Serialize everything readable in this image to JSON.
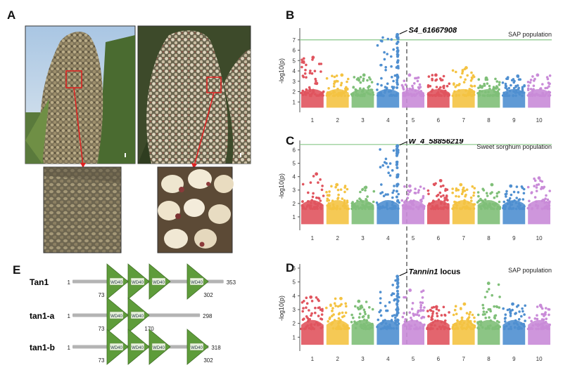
{
  "panels": {
    "A": "A",
    "B": "B",
    "C": "C",
    "D": "D",
    "E": "E"
  },
  "manhattan": [
    {
      "id": "B",
      "annotation": "S4_61667908",
      "population": "SAP population",
      "ylabel": "-log10(p)",
      "ylim": [
        0,
        8
      ],
      "yticks": [
        "1",
        "2",
        "3",
        "4",
        "5",
        "6",
        "7"
      ],
      "threshold": 7,
      "peak_chromosome": 4,
      "peak_value": 7.5,
      "chromosomes": [
        "1",
        "2",
        "3",
        "4",
        "5",
        "6",
        "7",
        "8",
        "9",
        "10"
      ],
      "chrom_max": [
        5.3,
        3.6,
        3.6,
        7.5,
        3.6,
        3.6,
        4.3,
        3.3,
        3.5,
        3.6
      ]
    },
    {
      "id": "C",
      "annotation": "W_4_58856219",
      "population": "Sweet sorghum population",
      "ylabel": "-log10(p)",
      "ylim": [
        0,
        6.6
      ],
      "yticks": [
        "1",
        "2",
        "3",
        "4",
        "5",
        "6"
      ],
      "threshold": 6.4,
      "peak_chromosome": 4,
      "peak_value": 6.3,
      "chromosomes": [
        "1",
        "2",
        "3",
        "4",
        "5",
        "6",
        "7",
        "8",
        "9",
        "10"
      ],
      "chrom_max": [
        4.2,
        3.4,
        3.2,
        6.3,
        3.3,
        3.7,
        3.4,
        3.4,
        3.3,
        3.9
      ]
    },
    {
      "id": "D",
      "annotation_italic": "Tannin1",
      "annotation_suffix": " locus",
      "population": "SAP population",
      "ylabel": "-log10(p)",
      "ylim": [
        0,
        6.2
      ],
      "yticks": [
        "1",
        "2",
        "3",
        "4",
        "5",
        "6"
      ],
      "threshold": null,
      "peak_chromosome": 4,
      "peak_value": 5.4,
      "chromosomes": [
        "1",
        "2",
        "3",
        "4",
        "5",
        "6",
        "7",
        "8",
        "9",
        "10"
      ],
      "chrom_max": [
        3.9,
        3.8,
        3.6,
        5.4,
        4.4,
        3.2,
        3.4,
        4.9,
        3.4,
        3.3
      ]
    }
  ],
  "colors": {
    "chrom": [
      "#e0545e",
      "#f4c342",
      "#7fbf78",
      "#4f8fd0",
      "#c98bd8",
      "#e0545e",
      "#f4c342",
      "#7fbf78",
      "#4f8fd0",
      "#c98bd8"
    ],
    "threshold": "#87c787",
    "protein_line": "#b4b4b4",
    "wd40_fill": "#5e9c3a",
    "wd40_light": "#e8f2dc"
  },
  "proteins": [
    {
      "name": "Tan1",
      "start": "1",
      "end": "353",
      "mark": "73",
      "mark2": "302",
      "domain_label": "WD40",
      "domains": 4
    },
    {
      "name": "tan1-a",
      "start": "1",
      "end": "298",
      "mark": "73",
      "mark2": "170",
      "domain_label": "WD40",
      "domains": 2
    },
    {
      "name": "tan1-b",
      "start": "1",
      "end": "318",
      "mark": "73",
      "mark2": "302",
      "domain_label": "WD40",
      "domains": 4
    }
  ]
}
